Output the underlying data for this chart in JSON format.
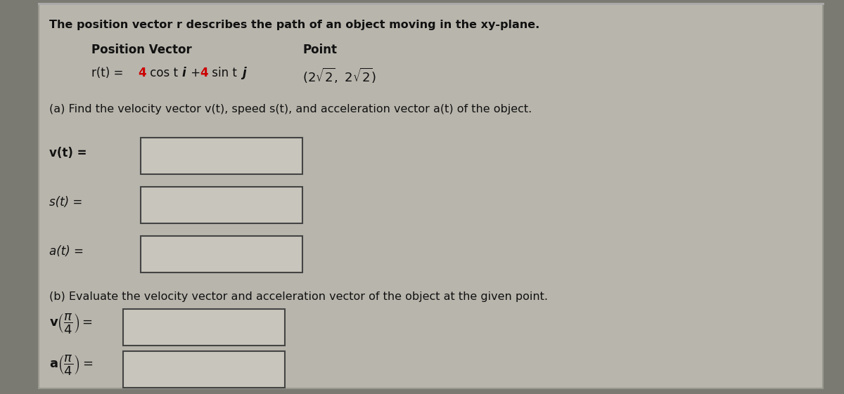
{
  "bg_color": "#7a7a72",
  "panel_color": "#b8b5ac",
  "box_fill": "#c8c5bc",
  "box_border": "#444444",
  "text_color": "#111111",
  "red_color": "#cc0000",
  "title_text": "The position vector r describes the path of an object moving in the xy-plane.",
  "header_pos_vec": "Position Vector",
  "header_point": "Point",
  "part_a_text": "(a) Find the velocity vector v(t), speed s(t), and acceleration vector a(t) of the object.",
  "part_b_text": "(b) Evaluate the velocity vector and acceleration vector of the object at the given point.",
  "vt_label": "v(t) =",
  "st_label": "s(t) =",
  "at_label": "a(t) =",
  "figsize": [
    12.0,
    5.61
  ],
  "dpi": 100
}
